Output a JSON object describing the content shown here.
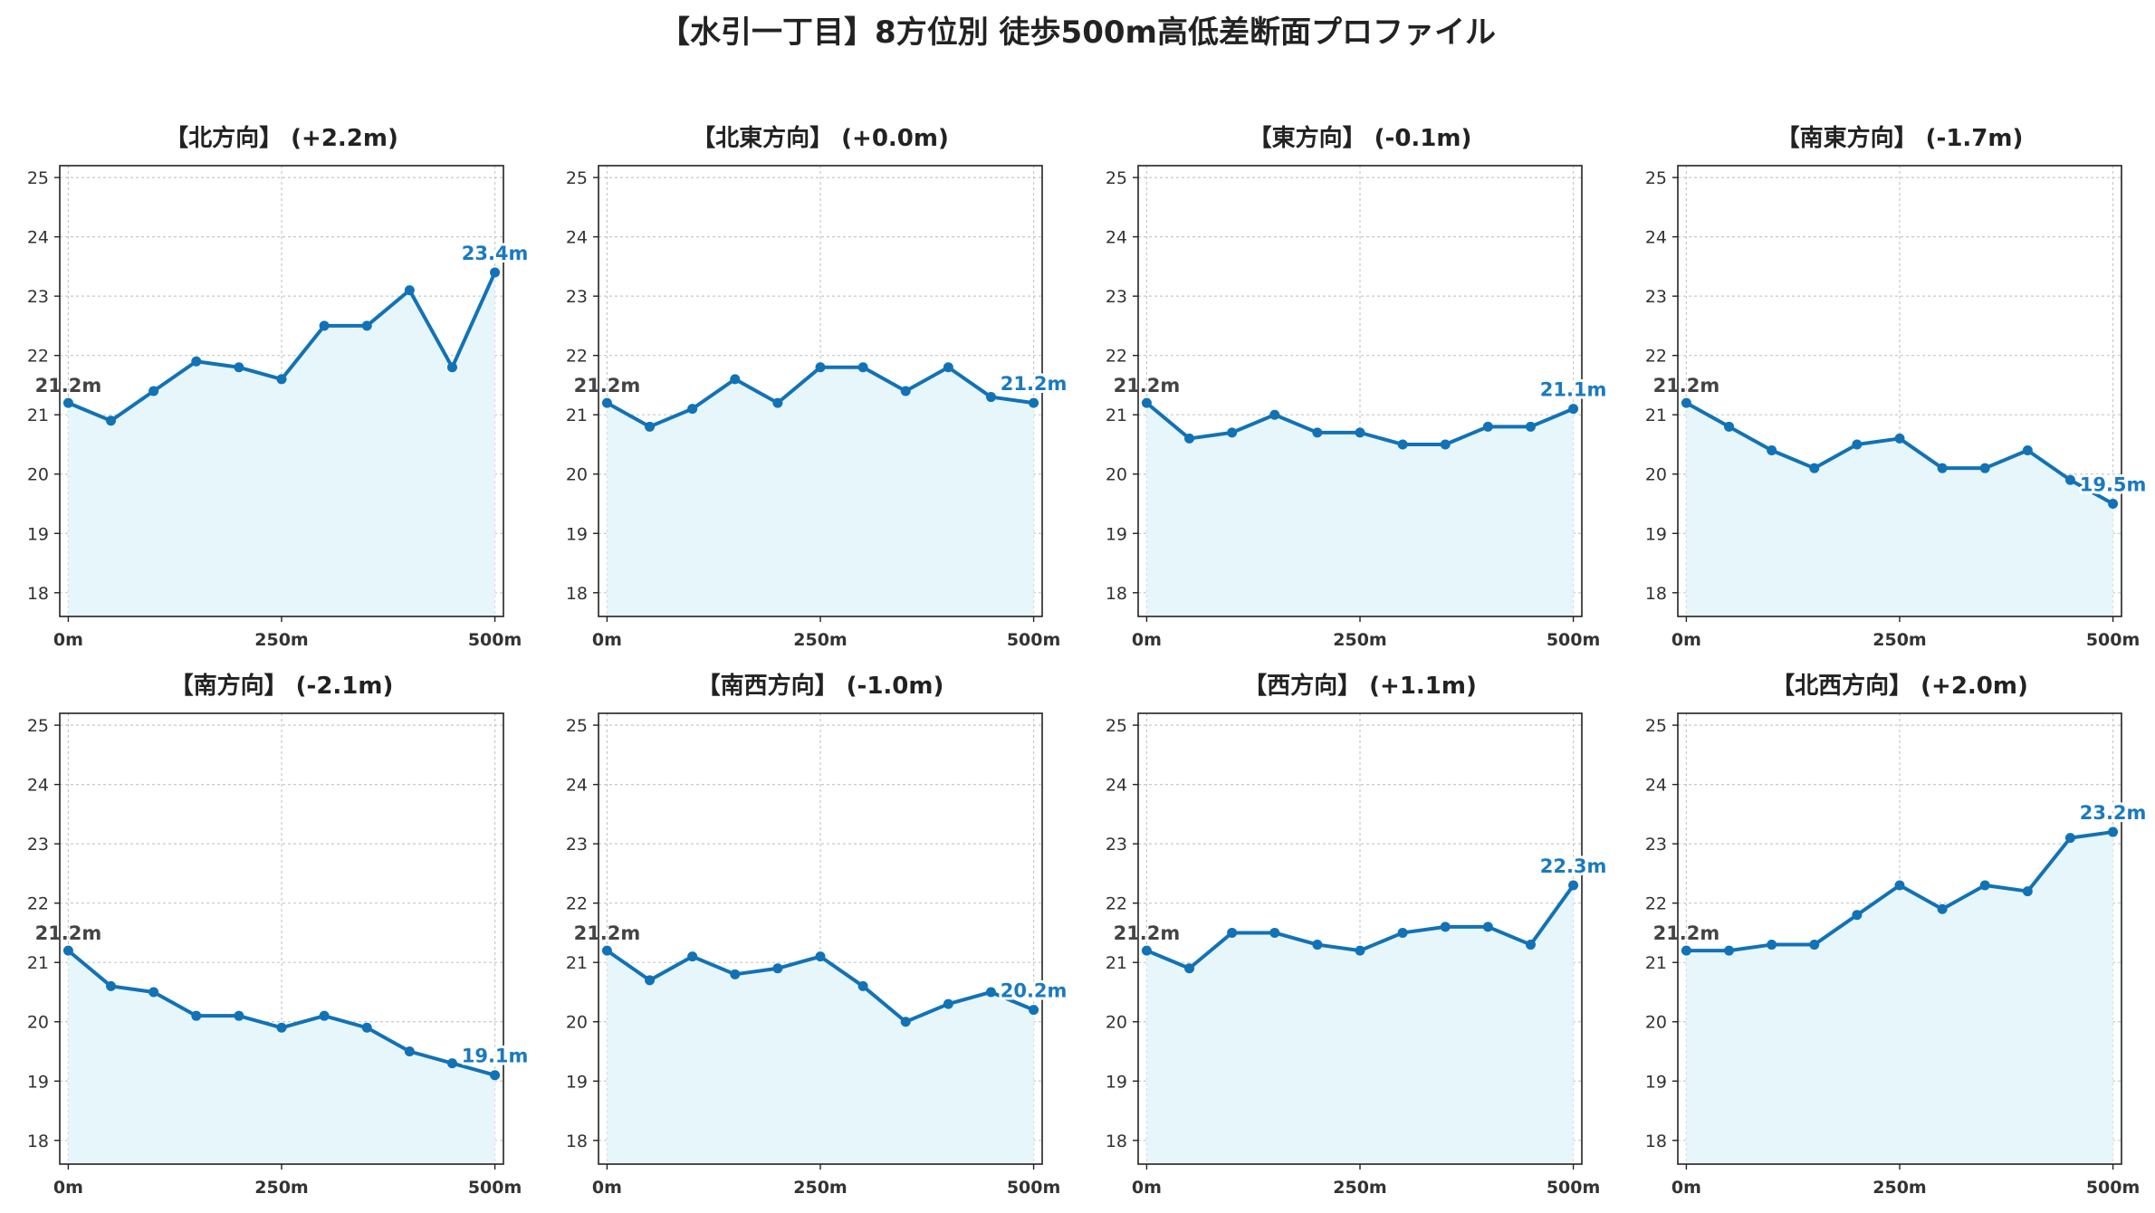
{
  "title": "【水引一丁目】8方位別 徒歩500m高低差断面プロファイル",
  "colors": {
    "line": "#1272b6",
    "fill": "#e7f6fb",
    "grid": "#c8c8c8",
    "end_label": "#1a7ac0"
  },
  "chart_data": [
    {
      "type": "line",
      "title": "【北方向】 (+2.2m)",
      "x": [
        0,
        50,
        100,
        150,
        200,
        250,
        300,
        350,
        400,
        450,
        500
      ],
      "values": [
        21.2,
        20.9,
        21.4,
        21.9,
        21.8,
        21.6,
        22.5,
        22.5,
        23.1,
        21.8,
        23.4
      ],
      "start_label": "21.2m",
      "end_label": "23.4m",
      "xticks": [
        0,
        250,
        500
      ],
      "xtick_labels": [
        "0m",
        "250m",
        "500m"
      ],
      "yticks": [
        18,
        19,
        20,
        21,
        22,
        23,
        24,
        25
      ],
      "ylim": [
        17.6,
        25.2
      ],
      "grid": true
    },
    {
      "type": "line",
      "title": "【北東方向】 (+0.0m)",
      "x": [
        0,
        50,
        100,
        150,
        200,
        250,
        300,
        350,
        400,
        450,
        500
      ],
      "values": [
        21.2,
        20.8,
        21.1,
        21.6,
        21.2,
        21.8,
        21.8,
        21.4,
        21.8,
        21.3,
        21.2
      ],
      "start_label": "21.2m",
      "end_label": "21.2m",
      "xticks": [
        0,
        250,
        500
      ],
      "xtick_labels": [
        "0m",
        "250m",
        "500m"
      ],
      "yticks": [
        18,
        19,
        20,
        21,
        22,
        23,
        24,
        25
      ],
      "ylim": [
        17.6,
        25.2
      ],
      "grid": true
    },
    {
      "type": "line",
      "title": "【東方向】 (-0.1m)",
      "x": [
        0,
        50,
        100,
        150,
        200,
        250,
        300,
        350,
        400,
        450,
        500
      ],
      "values": [
        21.2,
        20.6,
        20.7,
        21.0,
        20.7,
        20.7,
        20.5,
        20.5,
        20.8,
        20.8,
        21.1
      ],
      "start_label": "21.2m",
      "end_label": "21.1m",
      "xticks": [
        0,
        250,
        500
      ],
      "xtick_labels": [
        "0m",
        "250m",
        "500m"
      ],
      "yticks": [
        18,
        19,
        20,
        21,
        22,
        23,
        24,
        25
      ],
      "ylim": [
        17.6,
        25.2
      ],
      "grid": true
    },
    {
      "type": "line",
      "title": "【南東方向】 (-1.7m)",
      "x": [
        0,
        50,
        100,
        150,
        200,
        250,
        300,
        350,
        400,
        450,
        500
      ],
      "values": [
        21.2,
        20.8,
        20.4,
        20.1,
        20.5,
        20.6,
        20.1,
        20.1,
        20.4,
        19.9,
        19.5
      ],
      "start_label": "21.2m",
      "end_label": "19.5m",
      "xticks": [
        0,
        250,
        500
      ],
      "xtick_labels": [
        "0m",
        "250m",
        "500m"
      ],
      "yticks": [
        18,
        19,
        20,
        21,
        22,
        23,
        24,
        25
      ],
      "ylim": [
        17.6,
        25.2
      ],
      "grid": true
    },
    {
      "type": "line",
      "title": "【南方向】 (-2.1m)",
      "x": [
        0,
        50,
        100,
        150,
        200,
        250,
        300,
        350,
        400,
        450,
        500
      ],
      "values": [
        21.2,
        20.6,
        20.5,
        20.1,
        20.1,
        19.9,
        20.1,
        19.9,
        19.5,
        19.3,
        19.1
      ],
      "start_label": "21.2m",
      "end_label": "19.1m",
      "xticks": [
        0,
        250,
        500
      ],
      "xtick_labels": [
        "0m",
        "250m",
        "500m"
      ],
      "yticks": [
        18,
        19,
        20,
        21,
        22,
        23,
        24,
        25
      ],
      "ylim": [
        17.6,
        25.2
      ],
      "grid": true
    },
    {
      "type": "line",
      "title": "【南西方向】 (-1.0m)",
      "x": [
        0,
        50,
        100,
        150,
        200,
        250,
        300,
        350,
        400,
        450,
        500
      ],
      "values": [
        21.2,
        20.7,
        21.1,
        20.8,
        20.9,
        21.1,
        20.6,
        20.0,
        20.3,
        20.5,
        20.2
      ],
      "start_label": "21.2m",
      "end_label": "20.2m",
      "xticks": [
        0,
        250,
        500
      ],
      "xtick_labels": [
        "0m",
        "250m",
        "500m"
      ],
      "yticks": [
        18,
        19,
        20,
        21,
        22,
        23,
        24,
        25
      ],
      "ylim": [
        17.6,
        25.2
      ],
      "grid": true
    },
    {
      "type": "line",
      "title": "【西方向】 (+1.1m)",
      "x": [
        0,
        50,
        100,
        150,
        200,
        250,
        300,
        350,
        400,
        450,
        500
      ],
      "values": [
        21.2,
        20.9,
        21.5,
        21.5,
        21.3,
        21.2,
        21.5,
        21.6,
        21.6,
        21.3,
        22.3
      ],
      "start_label": "21.2m",
      "end_label": "22.3m",
      "xticks": [
        0,
        250,
        500
      ],
      "xtick_labels": [
        "0m",
        "250m",
        "500m"
      ],
      "yticks": [
        18,
        19,
        20,
        21,
        22,
        23,
        24,
        25
      ],
      "ylim": [
        17.6,
        25.2
      ],
      "grid": true
    },
    {
      "type": "line",
      "title": "【北西方向】 (+2.0m)",
      "x": [
        0,
        50,
        100,
        150,
        200,
        250,
        300,
        350,
        400,
        450,
        500
      ],
      "values": [
        21.2,
        21.2,
        21.3,
        21.3,
        21.8,
        22.3,
        21.9,
        22.3,
        22.2,
        23.1,
        23.2
      ],
      "start_label": "21.2m",
      "end_label": "23.2m",
      "xticks": [
        0,
        250,
        500
      ],
      "xtick_labels": [
        "0m",
        "250m",
        "500m"
      ],
      "yticks": [
        18,
        19,
        20,
        21,
        22,
        23,
        24,
        25
      ],
      "ylim": [
        17.6,
        25.2
      ],
      "grid": true
    }
  ]
}
